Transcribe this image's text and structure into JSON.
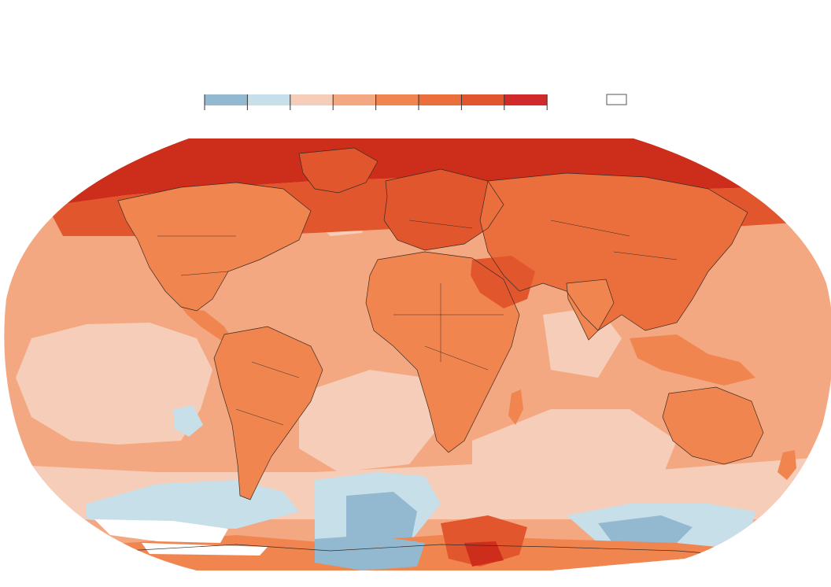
{
  "title": "",
  "legend": {
    "scale_colors": [
      "#92b9cf",
      "#c7dfe9",
      "#f6cdb8",
      "#f4a882",
      "#f1854f",
      "#eb6f3d",
      "#e2562e",
      "#d12a2a"
    ],
    "no_data_color": "#ffffff"
  },
  "map": {
    "projection": "robinson",
    "colors": {
      "ocean_base": "#f4a882",
      "land_base": "#f1854f",
      "strong": "#e2562e",
      "hottest": "#cd2e1c",
      "cool": "#c7dfe9",
      "cold": "#92b9cf",
      "mild": "#f6cdb8",
      "no_data": "#ffffff",
      "border": "#3a2a22"
    },
    "icons": [
      "world-map",
      "coastlines",
      "country-borders"
    ]
  }
}
